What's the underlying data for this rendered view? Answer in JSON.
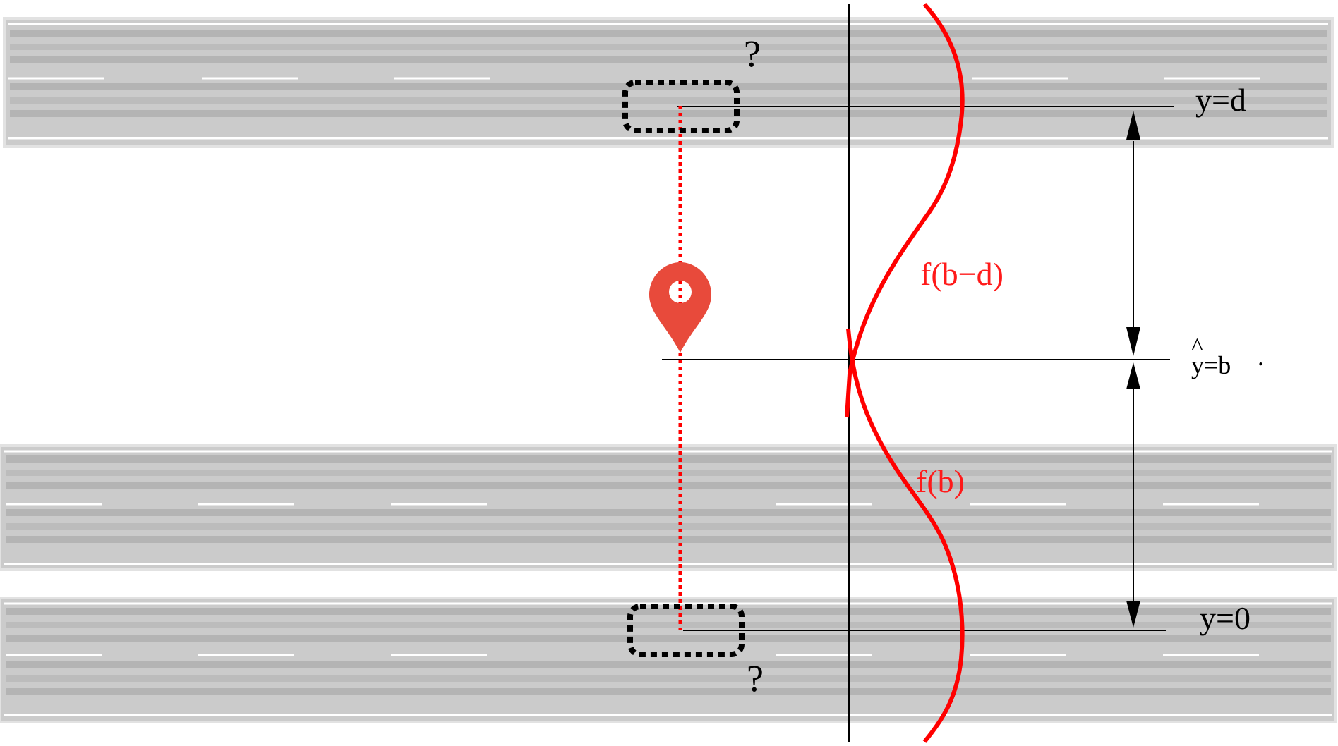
{
  "labels": {
    "y_d": "y=d",
    "y_b_hat": "^",
    "y_b": "y=b",
    "y_0": "y=0",
    "f_b_minus_d": "f(b−d)",
    "f_b": "f(b)",
    "question_top": "?",
    "question_bottom": "?",
    "dot": "."
  },
  "roads": [
    {
      "name": "top-road"
    },
    {
      "name": "middle-road"
    },
    {
      "name": "bottom-road"
    }
  ],
  "colors": {
    "road": "#cbcbcb",
    "road_stripe": "#b2b2b2",
    "lane_marking": "#ffffff",
    "curve": "#ff0000",
    "pin": "#e84a3b",
    "axis": "#000000"
  },
  "icons": {
    "location_pin": "location-pin-icon"
  }
}
